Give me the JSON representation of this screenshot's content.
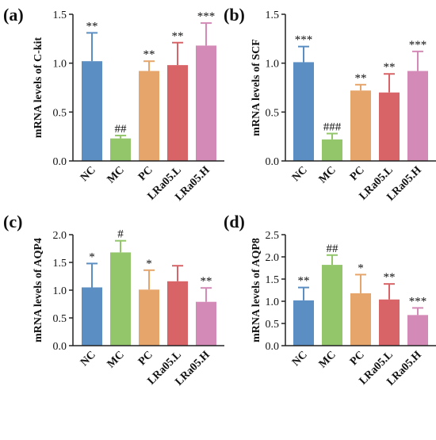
{
  "colors": {
    "NC": "#5b8ec3",
    "MC": "#93c66a",
    "PC": "#e6a56a",
    "LRa05.L": "#d96468",
    "LRa05.H": "#d48ab7"
  },
  "chart_data": [
    {
      "type": "bar",
      "panel": "(a)",
      "ylabel": "mRNA levels of C-kit",
      "categories": [
        "NC",
        "MC",
        "PC",
        "LRa05.L",
        "LRa05.H"
      ],
      "values": [
        1.02,
        0.23,
        0.92,
        0.98,
        1.18
      ],
      "errors": [
        0.29,
        0.03,
        0.1,
        0.23,
        0.23
      ],
      "significance": [
        "**",
        "##",
        "**",
        "**",
        "***"
      ],
      "ylim": [
        0,
        1.5
      ],
      "yticks": [
        "0.0",
        "0.5",
        "1.0",
        "1.5"
      ],
      "grid": false
    },
    {
      "type": "bar",
      "panel": "(b)",
      "ylabel": "mRNA  levels of SCF",
      "categories": [
        "NC",
        "MC",
        "PC",
        "LRa05.L",
        "LRa05.H"
      ],
      "values": [
        1.01,
        0.22,
        0.72,
        0.7,
        0.92
      ],
      "errors": [
        0.16,
        0.06,
        0.06,
        0.19,
        0.2
      ],
      "significance": [
        "***",
        "###",
        "**",
        "**",
        "***"
      ],
      "ylim": [
        0,
        1.5
      ],
      "yticks": [
        "0.0",
        "0.5",
        "1.0",
        "1.5"
      ],
      "grid": false
    },
    {
      "type": "bar",
      "panel": "(c)",
      "ylabel": "mRNA  levels of AQP4",
      "categories": [
        "NC",
        "MC",
        "PC",
        "LRa05.L",
        "LRa05.H"
      ],
      "values": [
        1.05,
        1.68,
        1.01,
        1.16,
        0.79
      ],
      "errors": [
        0.43,
        0.21,
        0.35,
        0.28,
        0.25
      ],
      "significance": [
        "*",
        "#",
        "*",
        "",
        "**"
      ],
      "ylim": [
        0,
        2.0
      ],
      "yticks": [
        "0.0",
        "0.5",
        "1.0",
        "1.5",
        "2.0"
      ],
      "grid": false
    },
    {
      "type": "bar",
      "panel": "(d)",
      "ylabel": "mRNA  levels of AQP8",
      "categories": [
        "NC",
        "MC",
        "PC",
        "LRa05.L",
        "LRa05.H"
      ],
      "values": [
        1.02,
        1.82,
        1.18,
        1.04,
        0.69
      ],
      "errors": [
        0.29,
        0.22,
        0.42,
        0.35,
        0.16
      ],
      "significance": [
        "**",
        "##",
        "*",
        "**",
        "***"
      ],
      "ylim": [
        0,
        2.5
      ],
      "yticks": [
        "0.0",
        "0.5",
        "1.0",
        "1.5",
        "2.0",
        "2.5"
      ],
      "grid": false
    }
  ]
}
